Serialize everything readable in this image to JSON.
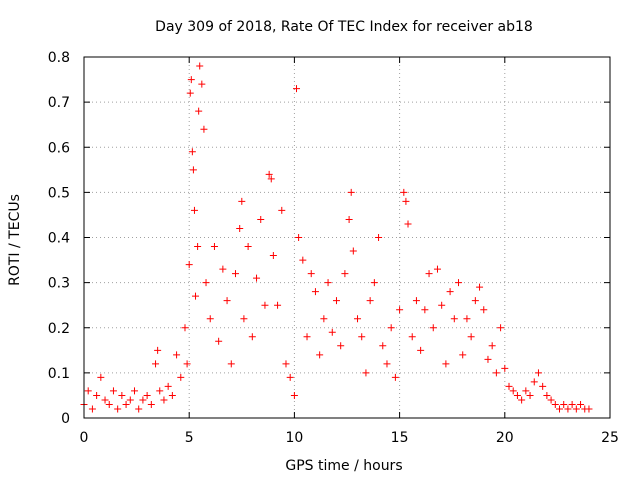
{
  "chart_data": {
    "type": "scatter",
    "title": "Day 309 of 2018, Rate Of TEC Index for receiver ab18",
    "xlabel": "GPS time / hours",
    "ylabel": "ROTI / TECUs",
    "xlim": [
      0,
      25
    ],
    "ylim": [
      0,
      0.8
    ],
    "xticks": [
      0,
      5,
      10,
      15,
      20,
      25
    ],
    "xtick_labels": [
      "0",
      "5",
      "10",
      "15",
      "20",
      "25"
    ],
    "yticks": [
      0,
      0.1,
      0.2,
      0.3,
      0.4,
      0.5,
      0.6,
      0.7,
      0.8
    ],
    "ytick_labels": [
      "0",
      "0.1",
      "0.2",
      "0.3",
      "0.4",
      "0.5",
      "0.6",
      "0.7",
      "0.8"
    ],
    "grid": true,
    "marker": "+",
    "color": "#ff0000",
    "series": [
      {
        "name": "ROTI",
        "points": [
          [
            0.0,
            0.03
          ],
          [
            0.2,
            0.06
          ],
          [
            0.4,
            0.02
          ],
          [
            0.6,
            0.05
          ],
          [
            0.8,
            0.09
          ],
          [
            1.0,
            0.04
          ],
          [
            1.2,
            0.03
          ],
          [
            1.4,
            0.06
          ],
          [
            1.6,
            0.02
          ],
          [
            1.8,
            0.05
          ],
          [
            2.0,
            0.03
          ],
          [
            2.2,
            0.04
          ],
          [
            2.4,
            0.06
          ],
          [
            2.6,
            0.02
          ],
          [
            2.8,
            0.04
          ],
          [
            3.0,
            0.05
          ],
          [
            3.2,
            0.03
          ],
          [
            3.4,
            0.12
          ],
          [
            3.5,
            0.15
          ],
          [
            3.6,
            0.06
          ],
          [
            3.8,
            0.04
          ],
          [
            4.0,
            0.07
          ],
          [
            4.2,
            0.05
          ],
          [
            4.4,
            0.14
          ],
          [
            4.6,
            0.09
          ],
          [
            4.8,
            0.2
          ],
          [
            4.9,
            0.12
          ],
          [
            5.0,
            0.34
          ],
          [
            5.05,
            0.72
          ],
          [
            5.1,
            0.75
          ],
          [
            5.15,
            0.59
          ],
          [
            5.2,
            0.55
          ],
          [
            5.25,
            0.46
          ],
          [
            5.3,
            0.27
          ],
          [
            5.4,
            0.38
          ],
          [
            5.45,
            0.68
          ],
          [
            5.5,
            0.78
          ],
          [
            5.6,
            0.74
          ],
          [
            5.7,
            0.64
          ],
          [
            5.8,
            0.3
          ],
          [
            6.0,
            0.22
          ],
          [
            6.2,
            0.38
          ],
          [
            6.4,
            0.17
          ],
          [
            6.6,
            0.33
          ],
          [
            6.8,
            0.26
          ],
          [
            7.0,
            0.12
          ],
          [
            7.2,
            0.32
          ],
          [
            7.4,
            0.42
          ],
          [
            7.5,
            0.48
          ],
          [
            7.6,
            0.22
          ],
          [
            7.8,
            0.38
          ],
          [
            8.0,
            0.18
          ],
          [
            8.2,
            0.31
          ],
          [
            8.4,
            0.44
          ],
          [
            8.6,
            0.25
          ],
          [
            8.8,
            0.54
          ],
          [
            8.9,
            0.53
          ],
          [
            9.0,
            0.36
          ],
          [
            9.2,
            0.25
          ],
          [
            9.4,
            0.46
          ],
          [
            9.6,
            0.12
          ],
          [
            9.8,
            0.09
          ],
          [
            10.0,
            0.05
          ],
          [
            10.1,
            0.73
          ],
          [
            10.2,
            0.4
          ],
          [
            10.4,
            0.35
          ],
          [
            10.6,
            0.18
          ],
          [
            10.8,
            0.32
          ],
          [
            11.0,
            0.28
          ],
          [
            11.2,
            0.14
          ],
          [
            11.4,
            0.22
          ],
          [
            11.6,
            0.3
          ],
          [
            11.8,
            0.19
          ],
          [
            12.0,
            0.26
          ],
          [
            12.2,
            0.16
          ],
          [
            12.4,
            0.32
          ],
          [
            12.6,
            0.44
          ],
          [
            12.7,
            0.5
          ],
          [
            12.8,
            0.37
          ],
          [
            13.0,
            0.22
          ],
          [
            13.2,
            0.18
          ],
          [
            13.4,
            0.1
          ],
          [
            13.6,
            0.26
          ],
          [
            13.8,
            0.3
          ],
          [
            14.0,
            0.4
          ],
          [
            14.2,
            0.16
          ],
          [
            14.4,
            0.12
          ],
          [
            14.6,
            0.2
          ],
          [
            14.8,
            0.09
          ],
          [
            15.0,
            0.24
          ],
          [
            15.2,
            0.5
          ],
          [
            15.3,
            0.48
          ],
          [
            15.4,
            0.43
          ],
          [
            15.6,
            0.18
          ],
          [
            15.8,
            0.26
          ],
          [
            16.0,
            0.15
          ],
          [
            16.2,
            0.24
          ],
          [
            16.4,
            0.32
          ],
          [
            16.6,
            0.2
          ],
          [
            16.8,
            0.33
          ],
          [
            17.0,
            0.25
          ],
          [
            17.2,
            0.12
          ],
          [
            17.4,
            0.28
          ],
          [
            17.6,
            0.22
          ],
          [
            17.8,
            0.3
          ],
          [
            18.0,
            0.14
          ],
          [
            18.2,
            0.22
          ],
          [
            18.4,
            0.18
          ],
          [
            18.6,
            0.26
          ],
          [
            18.8,
            0.29
          ],
          [
            19.0,
            0.24
          ],
          [
            19.2,
            0.13
          ],
          [
            19.4,
            0.16
          ],
          [
            19.6,
            0.1
          ],
          [
            19.8,
            0.2
          ],
          [
            20.0,
            0.11
          ],
          [
            20.2,
            0.07
          ],
          [
            20.4,
            0.06
          ],
          [
            20.6,
            0.05
          ],
          [
            20.8,
            0.04
          ],
          [
            21.0,
            0.06
          ],
          [
            21.2,
            0.05
          ],
          [
            21.4,
            0.08
          ],
          [
            21.6,
            0.1
          ],
          [
            21.8,
            0.07
          ],
          [
            22.0,
            0.05
          ],
          [
            22.2,
            0.04
          ],
          [
            22.4,
            0.03
          ],
          [
            22.6,
            0.02
          ],
          [
            22.8,
            0.03
          ],
          [
            23.0,
            0.02
          ],
          [
            23.2,
            0.03
          ],
          [
            23.4,
            0.02
          ],
          [
            23.6,
            0.03
          ],
          [
            23.8,
            0.02
          ],
          [
            24.0,
            0.02
          ]
        ]
      }
    ]
  }
}
